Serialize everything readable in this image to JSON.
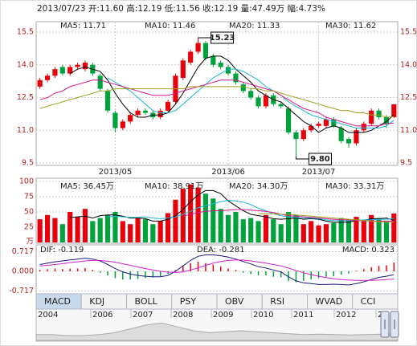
{
  "header": "2013/07/23 开:11.60 高:12.19 低:11.56 收:12.19 量:47.49万 幅:4.73%",
  "chart_data": [
    {
      "type": "candlestick",
      "categories": [
        null,
        null,
        null,
        null,
        null,
        null,
        null,
        null,
        null,
        null,
        "2013/05",
        null,
        null,
        null,
        null,
        null,
        null,
        null,
        null,
        null,
        null,
        null,
        null,
        null,
        null,
        "2013/06",
        null,
        null,
        null,
        null,
        null,
        null,
        null,
        null,
        null,
        null,
        null,
        "2013/07",
        null,
        null,
        null,
        null,
        null,
        null,
        null,
        null,
        null,
        null
      ],
      "open": [
        13.0,
        13.3,
        13.5,
        13.9,
        13.6,
        13.9,
        13.8,
        14.0,
        13.5,
        12.8,
        11.8,
        11.1,
        11.4,
        11.7,
        11.9,
        11.8,
        11.6,
        11.9,
        12.3,
        13.4,
        14.1,
        14.6,
        15.0,
        14.4,
        14.1,
        13.9,
        13.6,
        13.1,
        12.8,
        12.5,
        12.1,
        12.6,
        12.2,
        12.0,
        10.9,
        10.6,
        11.0,
        11.2,
        11.2,
        11.5,
        11.1,
        10.6,
        10.4,
        11.0,
        11.3,
        11.9,
        11.6,
        11.6
      ],
      "high": [
        13.4,
        13.6,
        13.9,
        14.0,
        14.0,
        14.1,
        14.2,
        14.1,
        13.6,
        12.9,
        11.9,
        11.5,
        11.8,
        12.0,
        12.0,
        11.9,
        12.0,
        12.4,
        13.6,
        14.3,
        14.7,
        15.23,
        15.1,
        14.5,
        14.2,
        14.0,
        13.7,
        13.2,
        12.9,
        12.6,
        12.7,
        12.7,
        12.3,
        12.1,
        11.0,
        11.1,
        11.3,
        11.4,
        11.6,
        11.6,
        11.2,
        10.7,
        11.1,
        11.4,
        12.0,
        12.0,
        11.7,
        12.19
      ],
      "low": [
        12.9,
        13.2,
        13.4,
        13.5,
        13.5,
        13.8,
        13.7,
        13.5,
        12.8,
        11.8,
        10.9,
        11.0,
        11.3,
        11.6,
        11.7,
        11.5,
        11.5,
        11.8,
        12.2,
        13.3,
        14.0,
        14.5,
        14.2,
        13.9,
        13.8,
        13.5,
        13.1,
        12.7,
        12.4,
        12.0,
        12.0,
        12.1,
        12.0,
        10.8,
        9.8,
        10.5,
        10.9,
        11.1,
        11.1,
        11.1,
        10.4,
        10.2,
        10.3,
        10.9,
        11.2,
        11.5,
        11.1,
        11.56
      ],
      "close": [
        13.3,
        13.5,
        13.8,
        13.6,
        13.9,
        14.0,
        14.1,
        13.6,
        12.9,
        11.9,
        11.1,
        11.4,
        11.7,
        11.9,
        11.8,
        11.6,
        11.9,
        12.3,
        13.5,
        14.2,
        14.6,
        15.0,
        14.3,
        14.0,
        13.9,
        13.6,
        13.2,
        12.8,
        12.5,
        12.1,
        12.6,
        12.2,
        12.1,
        10.9,
        10.6,
        11.0,
        11.2,
        11.3,
        11.5,
        11.2,
        10.5,
        10.4,
        11.0,
        11.3,
        11.9,
        11.6,
        11.3,
        12.19
      ],
      "up_color": "#e8000b",
      "down_color": "#00a33b",
      "ylim": [
        9.5,
        15.5
      ],
      "yticks": [
        15.5,
        {
          "value": 14.0,
          "label": "14.0"
        },
        12.5,
        {
          "value": 11.0,
          "label": "11.0"
        },
        9.5
      ],
      "annotations": [
        "15.23",
        "9.80"
      ],
      "series": [
        {
          "name": "MA5: 11.71",
          "color": "#000000",
          "values": [
            null,
            null,
            null,
            null,
            13.6,
            13.8,
            13.9,
            13.8,
            13.7,
            13.3,
            12.7,
            12.2,
            11.8,
            11.6,
            11.6,
            11.7,
            11.7,
            11.8,
            12.2,
            12.7,
            13.3,
            13.9,
            14.3,
            14.4,
            14.4,
            14.2,
            13.8,
            13.5,
            13.2,
            12.8,
            12.6,
            12.4,
            12.3,
            12.0,
            11.7,
            11.4,
            11.2,
            10.9,
            11.1,
            11.2,
            11.1,
            10.9,
            10.9,
            10.9,
            11.0,
            11.2,
            11.4,
            11.71
          ]
        },
        {
          "name": "MA10: 11.46",
          "color": "#18b4d8",
          "values": [
            null,
            null,
            null,
            null,
            null,
            null,
            null,
            null,
            null,
            13.4,
            13.2,
            13.0,
            12.8,
            12.5,
            12.2,
            11.9,
            11.8,
            11.8,
            11.9,
            12.2,
            12.5,
            12.8,
            13.1,
            13.4,
            13.6,
            13.8,
            13.8,
            13.7,
            13.5,
            13.3,
            13.0,
            12.8,
            12.6,
            12.3,
            12.1,
            11.9,
            11.7,
            11.6,
            11.5,
            11.4,
            11.3,
            11.2,
            11.1,
            11.1,
            11.1,
            11.1,
            11.2,
            11.46
          ]
        },
        {
          "name": "MA20: 11.33",
          "color": "#d8188c",
          "values": [
            12.4,
            12.5,
            12.7,
            12.8,
            13.0,
            13.1,
            13.2,
            13.3,
            13.3,
            13.2,
            13.1,
            13.0,
            12.9,
            12.8,
            12.7,
            12.6,
            12.6,
            12.6,
            12.7,
            12.8,
            12.9,
            13.0,
            13.1,
            13.2,
            13.3,
            13.3,
            13.3,
            13.2,
            13.1,
            13.0,
            12.9,
            12.8,
            12.6,
            12.4,
            12.2,
            12.0,
            11.9,
            11.8,
            11.6,
            11.5,
            11.4,
            11.3,
            11.2,
            11.2,
            11.2,
            11.2,
            11.3,
            11.33
          ]
        },
        {
          "name": "MA30: 11.62",
          "color": "#a0a020",
          "values": [
            12.0,
            12.1,
            12.2,
            12.3,
            12.4,
            12.5,
            12.6,
            12.7,
            12.8,
            12.8,
            12.9,
            12.9,
            12.9,
            12.9,
            12.9,
            12.9,
            12.9,
            12.9,
            12.9,
            12.9,
            13.0,
            13.0,
            13.0,
            13.0,
            13.0,
            13.0,
            13.0,
            13.0,
            12.9,
            12.9,
            12.8,
            12.8,
            12.7,
            12.6,
            12.5,
            12.4,
            12.3,
            12.2,
            12.1,
            12.0,
            11.9,
            11.9,
            11.8,
            11.8,
            11.7,
            11.7,
            11.6,
            11.62
          ]
        }
      ]
    },
    {
      "type": "bar",
      "unit": "万",
      "values": [
        38,
        45,
        40,
        30,
        50,
        42,
        55,
        35,
        40,
        45,
        50,
        35,
        30,
        40,
        38,
        30,
        35,
        48,
        70,
        88,
        95,
        90,
        80,
        72,
        55,
        45,
        50,
        38,
        40,
        35,
        45,
        38,
        30,
        50,
        45,
        30,
        35,
        28,
        30,
        32,
        40,
        38,
        42,
        35,
        45,
        40,
        35,
        47.49
      ],
      "ylim": [
        0,
        100
      ],
      "yticks": [
        100,
        75,
        50,
        25
      ],
      "series": [
        {
          "name": "MA5: 36.45万",
          "color": "#000000",
          "values": [
            null,
            null,
            null,
            null,
            41,
            42,
            43,
            40,
            44,
            45,
            45,
            43,
            40,
            40,
            39,
            35,
            35,
            38,
            44,
            54,
            67,
            78,
            85,
            85,
            80,
            68,
            60,
            52,
            46,
            44,
            42,
            39,
            38,
            39,
            40,
            38,
            39,
            38,
            35,
            33,
            33,
            33,
            36,
            36,
            39,
            39,
            40,
            36.45
          ]
        },
        {
          "name": "MA10: 38.91万",
          "color": "#18b4d8",
          "values": [
            null,
            null,
            null,
            null,
            null,
            null,
            null,
            null,
            null,
            42,
            43,
            42,
            41,
            41,
            42,
            40,
            39,
            40,
            42,
            46,
            51,
            57,
            60,
            63,
            67,
            69,
            68,
            66,
            62,
            56,
            52,
            47,
            44,
            42,
            41,
            40,
            40,
            39,
            37,
            36,
            35,
            36,
            36,
            37,
            37,
            38,
            38,
            38.91
          ]
        },
        {
          "name": "MA20: 34.30万",
          "color": "#d8188c",
          "values": [
            null,
            null,
            null,
            null,
            null,
            null,
            null,
            null,
            null,
            null,
            null,
            null,
            null,
            null,
            null,
            null,
            null,
            null,
            null,
            43,
            46,
            49,
            51,
            52,
            52,
            53,
            54,
            54,
            53,
            52,
            51,
            49,
            46,
            44,
            43,
            42,
            41,
            40,
            39,
            38,
            37,
            37,
            36,
            36,
            35,
            35,
            35,
            34.3
          ]
        },
        {
          "name": "MA30: 33.31万",
          "color": "#a0a020",
          "values": [
            null,
            null,
            null,
            null,
            null,
            null,
            null,
            null,
            null,
            null,
            null,
            null,
            null,
            null,
            null,
            null,
            null,
            null,
            null,
            null,
            null,
            null,
            null,
            null,
            null,
            null,
            null,
            null,
            null,
            47,
            47,
            47,
            46,
            46,
            45,
            44,
            43,
            42,
            41,
            40,
            39,
            38,
            37,
            36,
            35,
            34,
            33.5,
            33.31
          ]
        }
      ]
    },
    {
      "type": "macd",
      "name": "MACD: 0.323",
      "values": [
        0.05,
        0.08,
        0.1,
        0.08,
        0.1,
        0.1,
        0.12,
        0.05,
        -0.05,
        -0.15,
        -0.25,
        -0.3,
        -0.3,
        -0.28,
        -0.25,
        -0.22,
        -0.18,
        -0.1,
        0.05,
        0.2,
        0.3,
        0.35,
        0.3,
        0.25,
        0.18,
        0.1,
        0.05,
        -0.05,
        -0.1,
        -0.15,
        -0.15,
        -0.2,
        -0.22,
        -0.35,
        -0.4,
        -0.35,
        -0.3,
        -0.25,
        -0.2,
        -0.18,
        -0.12,
        -0.08,
        0.02,
        0.08,
        0.15,
        0.2,
        0.22,
        0.323
      ],
      "ylim": [
        -0.88,
        0.88
      ],
      "yticks": [
        0.717,
        {
          "value": 0,
          "label": "0.000"
        },
        -0.717
      ],
      "series": [
        {
          "name": "DIF: -0.119",
          "color": "#1a1a80",
          "values": [
            0.25,
            0.3,
            0.35,
            0.38,
            0.42,
            0.45,
            0.48,
            0.45,
            0.38,
            0.25,
            0.1,
            -0.02,
            -0.1,
            -0.15,
            -0.18,
            -0.2,
            -0.2,
            -0.15,
            0.0,
            0.2,
            0.4,
            0.55,
            0.6,
            0.6,
            0.57,
            0.52,
            0.45,
            0.36,
            0.27,
            0.17,
            0.12,
            0.05,
            -0.02,
            -0.2,
            -0.35,
            -0.42,
            -0.45,
            -0.48,
            -0.48,
            -0.47,
            -0.48,
            -0.5,
            -0.45,
            -0.38,
            -0.3,
            -0.22,
            -0.18,
            -0.119
          ]
        },
        {
          "name": "DEA: -0.281",
          "color": "#d020d0",
          "values": [
            0.2,
            0.22,
            0.25,
            0.28,
            0.32,
            0.35,
            0.38,
            0.4,
            0.4,
            0.37,
            0.33,
            0.28,
            0.22,
            0.16,
            0.1,
            0.05,
            0.0,
            -0.03,
            -0.04,
            -0.02,
            0.05,
            0.13,
            0.22,
            0.3,
            0.36,
            0.4,
            0.42,
            0.41,
            0.38,
            0.34,
            0.3,
            0.25,
            0.2,
            0.12,
            0.03,
            -0.05,
            -0.12,
            -0.18,
            -0.23,
            -0.27,
            -0.3,
            -0.32,
            -0.33,
            -0.33,
            -0.33,
            -0.32,
            -0.3,
            -0.281
          ]
        }
      ]
    }
  ],
  "tabs": [
    "MACD",
    "KDJ",
    "BOLL",
    "PSY",
    "OBV",
    "RSI",
    "WVAD",
    "CCI"
  ],
  "timeline": {
    "years": [
      "2004",
      "2006",
      "2007",
      "2008",
      "2009",
      "2010",
      "2011",
      "2012",
      "2"
    ],
    "values": [
      3,
      3,
      2.5,
      2.5,
      3,
      4,
      6,
      8,
      9,
      7,
      5,
      4,
      4.5,
      5,
      4.5,
      4,
      3.5,
      3,
      3.2,
      3,
      2.8,
      3,
      3.2,
      3.5
    ],
    "ylim": [
      0,
      10
    ]
  }
}
